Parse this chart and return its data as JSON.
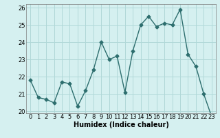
{
  "x": [
    0,
    1,
    2,
    3,
    4,
    5,
    6,
    7,
    8,
    9,
    10,
    11,
    12,
    13,
    14,
    15,
    16,
    17,
    18,
    19,
    20,
    21,
    22,
    23
  ],
  "y": [
    21.8,
    20.8,
    20.7,
    20.5,
    21.7,
    21.6,
    20.3,
    21.2,
    22.4,
    24.0,
    23.0,
    23.2,
    21.1,
    23.5,
    25.0,
    25.5,
    24.9,
    25.1,
    25.0,
    25.9,
    23.3,
    22.6,
    21.0,
    19.7
  ],
  "line_color": "#2d6e6e",
  "marker": "D",
  "markersize": 2.5,
  "linewidth": 1.0,
  "bg_color": "#d5f0f0",
  "grid_color": "#b0d8d8",
  "xlabel": "Humidex (Indice chaleur)",
  "xlabel_fontsize": 7,
  "tick_fontsize": 6,
  "ylim": [
    19.9,
    26.2
  ],
  "xlim": [
    -0.5,
    23.5
  ],
  "yticks": [
    20,
    21,
    22,
    23,
    24,
    25,
    26
  ],
  "xticks": [
    0,
    1,
    2,
    3,
    4,
    5,
    6,
    7,
    8,
    9,
    10,
    11,
    12,
    13,
    14,
    15,
    16,
    17,
    18,
    19,
    20,
    21,
    22,
    23
  ]
}
